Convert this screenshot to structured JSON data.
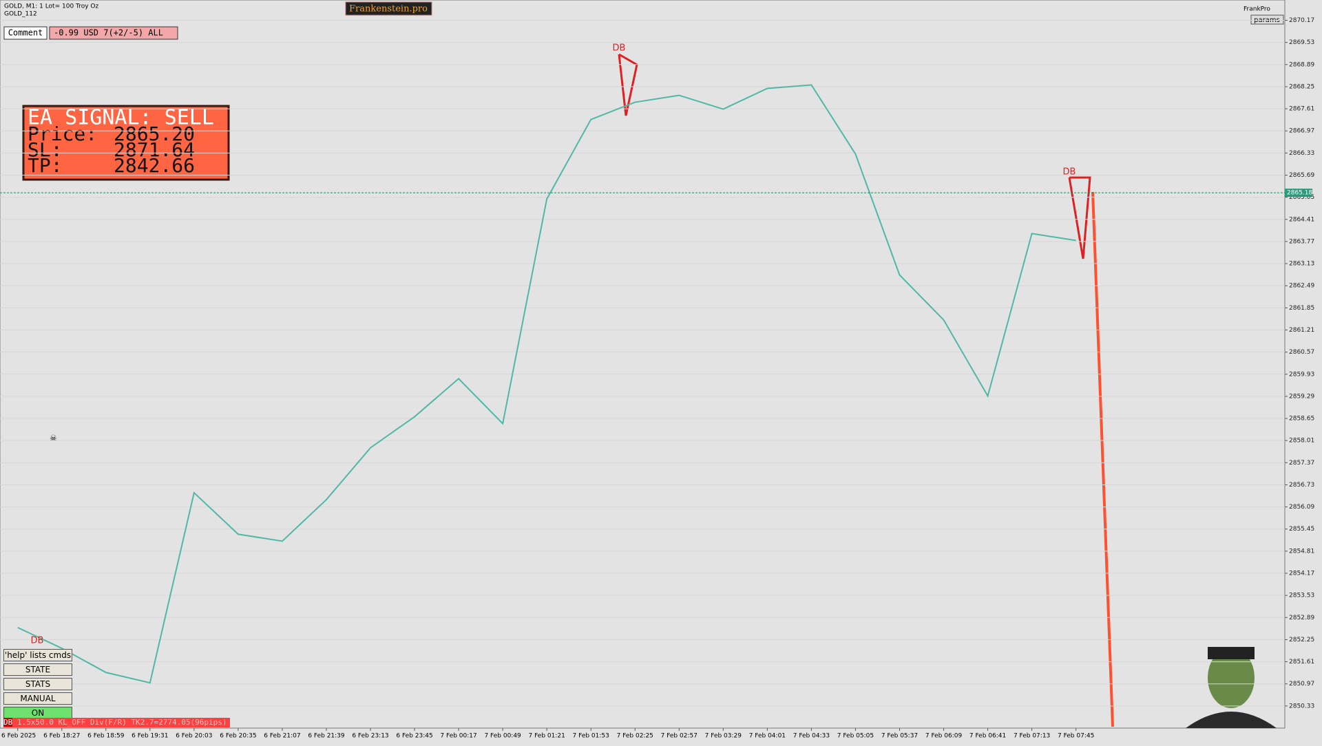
{
  "header": {
    "symbol": "GOLD, M1:  1 Lot= 100 Troy Oz",
    "subtitle": "GOLD_112",
    "brand": "Frankenstein.pro",
    "account": "FrankPro",
    "params": "params"
  },
  "comment": {
    "label": "Comment",
    "value": "-0.99 USD 7(+2/-5) ALL"
  },
  "signal": {
    "title": "EA SIGNAL: SELL",
    "price_label": "Price:",
    "price": "2865.20",
    "sl_label": "SL:",
    "sl": "2871.64",
    "tp_label": "TP:",
    "tp": "2842.66"
  },
  "buttons": [
    "'help' lists cmds",
    "STATE",
    "STATS",
    "MANUAL",
    "ON"
  ],
  "status": {
    "tag": "DB",
    "text": "1.5x50.0 KL_OFF Div(F/R) TK2.7=2774.05(96pips)"
  },
  "chart_data": {
    "type": "line",
    "categories": [
      "6 Feb 2025",
      "6 Feb 18:27",
      "6 Feb 18:59",
      "6 Feb 19:31",
      "6 Feb 20:03",
      "6 Feb 20:35",
      "6 Feb 21:07",
      "6 Feb 21:39",
      "6 Feb 23:13",
      "6 Feb 23:45",
      "7 Feb 00:17",
      "7 Feb 00:49",
      "7 Feb 01:21",
      "7 Feb 01:53",
      "7 Feb 02:25",
      "7 Feb 02:57",
      "7 Feb 03:29",
      "7 Feb 04:01",
      "7 Feb 04:33",
      "7 Feb 05:05",
      "7 Feb 05:37",
      "7 Feb 06:09",
      "7 Feb 06:41",
      "7 Feb 07:13",
      "7 Feb 07:45"
    ],
    "values": [
      2852.6,
      2852.0,
      2851.3,
      2851.0,
      2856.5,
      2855.3,
      2855.1,
      2856.3,
      2857.8,
      2858.7,
      2859.8,
      2858.5,
      2865.0,
      2867.3,
      2867.8,
      2868.0,
      2867.6,
      2868.2,
      2868.3,
      2866.3,
      2862.8,
      2861.5,
      2859.3,
      2864.0,
      2863.8
    ],
    "color": "#4fb8a4",
    "ylim": [
      2849.69,
      2870.71
    ],
    "yticks": [
      2870.17,
      2869.53,
      2868.89,
      2868.25,
      2867.61,
      2866.97,
      2866.33,
      2865.69,
      2865.05,
      2864.41,
      2863.77,
      2863.13,
      2862.49,
      2861.85,
      2861.21,
      2860.57,
      2859.93,
      2859.29,
      2858.65,
      2858.01,
      2857.37,
      2856.73,
      2856.09,
      2855.45,
      2854.81,
      2854.17,
      2853.53,
      2852.89,
      2852.25,
      2851.61,
      2850.97,
      2850.33
    ],
    "grid": true,
    "current_price": 2865.18,
    "annotations": [
      "DB",
      "DB",
      "DB"
    ]
  }
}
